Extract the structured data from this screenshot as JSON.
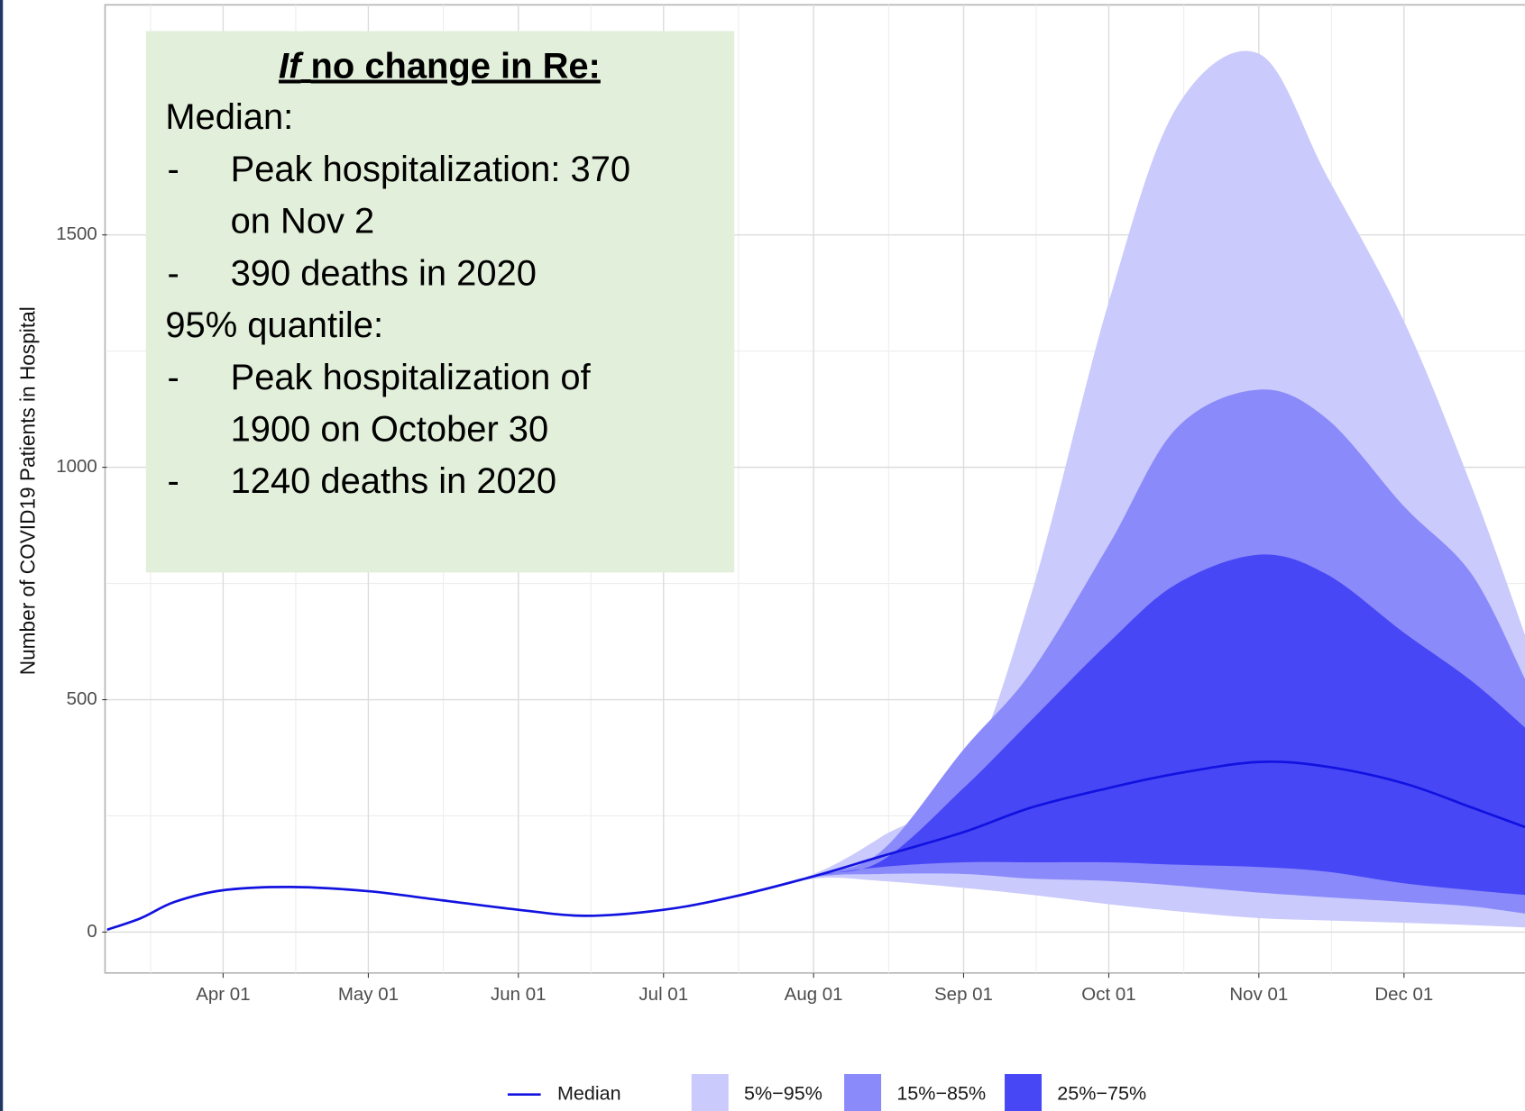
{
  "chart_data": {
    "type": "area_band",
    "y_label": "Number of COVID19 Patients in Hospital",
    "x": [
      "Mar 08",
      "Mar 15",
      "Mar 22",
      "Apr 01",
      "Apr 15",
      "May 01",
      "May 15",
      "Jun 01",
      "Jun 15",
      "Jul 01",
      "Jul 15",
      "Aug 01",
      "Aug 15",
      "Sep 01",
      "Sep 15",
      "Oct 01",
      "Oct 15",
      "Nov 01",
      "Nov 15",
      "Dec 01",
      "Dec 15",
      "Dec 26"
    ],
    "xlim": [
      "Mar 08",
      "Dec 26"
    ],
    "xticks": [
      "Apr 01",
      "May 01",
      "Jun 01",
      "Jul 01",
      "Aug 01",
      "Sep 01",
      "Oct 01",
      "Nov 01",
      "Dec 01"
    ],
    "ylim": [
      -88,
      1995
    ],
    "yticks": [
      0,
      500,
      1000,
      1500
    ],
    "grid": true,
    "bands": [
      {
        "name": "5%−95%",
        "color": "#cacafc",
        "upper": [
          5,
          30,
          65,
          90,
          97,
          88,
          70,
          48,
          35,
          48,
          75,
          125,
          205,
          330,
          728,
          1356,
          1774,
          1890,
          1628,
          1314,
          958,
          640
        ],
        "lower": [
          5,
          30,
          65,
          90,
          97,
          88,
          70,
          48,
          35,
          48,
          75,
          115,
          110,
          95,
          80,
          60,
          45,
          30,
          25,
          20,
          15,
          10
        ]
      },
      {
        "name": "15%−85%",
        "color": "#8a8afa",
        "upper": [
          5,
          30,
          65,
          90,
          97,
          88,
          70,
          48,
          35,
          48,
          75,
          122,
          174,
          393,
          560,
          833,
          1084,
          1167,
          1105,
          916,
          770,
          545
        ],
        "lower": [
          5,
          30,
          65,
          90,
          97,
          88,
          70,
          48,
          35,
          48,
          75,
          118,
          125,
          125,
          115,
          110,
          100,
          85,
          75,
          65,
          55,
          40
        ]
      },
      {
        "name": "25%−75%",
        "color": "#4747f6",
        "upper": [
          5,
          30,
          65,
          90,
          97,
          88,
          70,
          48,
          35,
          48,
          75,
          121,
          153,
          310,
          456,
          623,
          749,
          812,
          770,
          644,
          540,
          440
        ],
        "lower": [
          5,
          30,
          65,
          90,
          97,
          88,
          70,
          48,
          35,
          48,
          75,
          119,
          140,
          150,
          150,
          150,
          145,
          140,
          130,
          105,
          90,
          80
        ]
      }
    ],
    "series": [
      {
        "name": "Median",
        "color": "#1212e0",
        "values": [
          5,
          30,
          65,
          90,
          97,
          88,
          70,
          48,
          35,
          48,
          75,
          120,
          163,
          215,
          268,
          310,
          341,
          366,
          356,
          320,
          268,
          226
        ]
      }
    ],
    "annotation": {
      "title_italic": "If",
      "title": "no change in Re:",
      "sections": [
        {
          "heading": "Median:",
          "items": [
            {
              "bullet": "-",
              "lines": [
                "Peak hospitalization: 370",
                "on Nov 2"
              ]
            },
            {
              "bullet": "-",
              "lines": [
                "390 deaths in 2020"
              ]
            }
          ]
        },
        {
          "heading": "95% quantile:",
          "items": [
            {
              "bullet": "-",
              "lines": [
                "Peak hospitalization of",
                "1900 on October 30"
              ]
            },
            {
              "bullet": "-",
              "lines": [
                "1240 deaths in 2020"
              ]
            }
          ]
        }
      ]
    }
  }
}
